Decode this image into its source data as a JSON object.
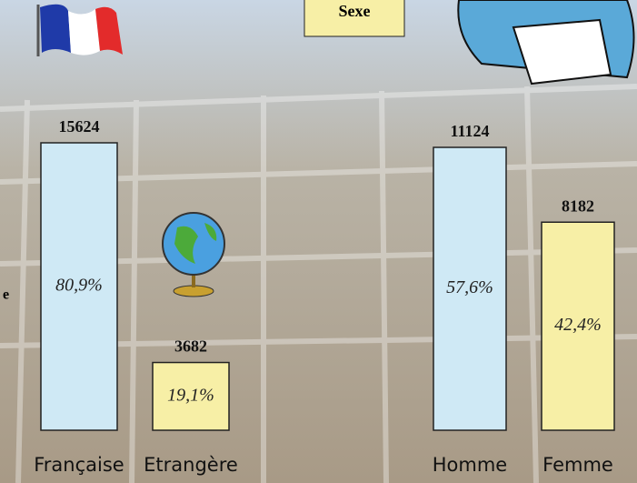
{
  "header": {
    "title": "Sexe",
    "side_label": "e"
  },
  "chart_data": [
    {
      "type": "bar",
      "categories": [
        "Française",
        "Etrangère"
      ],
      "values": [
        15624,
        3682
      ],
      "share_labels": [
        "80,9%",
        "19,1%"
      ],
      "colors": [
        "#cfe9f5",
        "#f7efa6"
      ]
    },
    {
      "type": "bar",
      "categories": [
        "Homme",
        "Femme"
      ],
      "values": [
        11124,
        8182
      ],
      "share_labels": [
        "57,6%",
        "42,4%"
      ],
      "colors": [
        "#cfe9f5",
        "#f7efa6"
      ]
    }
  ]
}
